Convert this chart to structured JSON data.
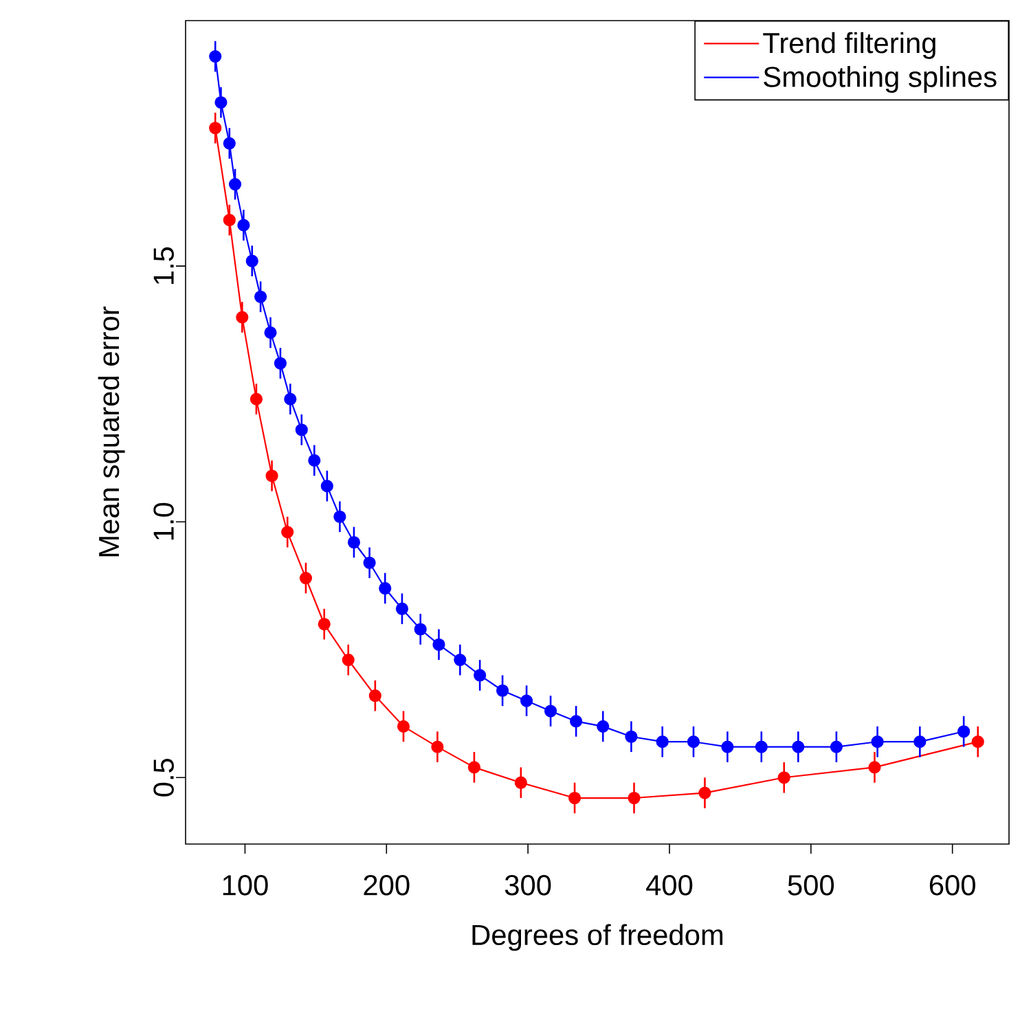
{
  "chart_data": {
    "type": "line",
    "xlabel": "Degrees of freedom",
    "ylabel": "Mean squared error",
    "xlim": [
      58,
      640
    ],
    "ylim": [
      0.37,
      1.98
    ],
    "xticks": [
      100,
      200,
      300,
      400,
      500,
      600
    ],
    "yticks": [
      0.5,
      {
        "value": 1,
        "label": "1.0"
      },
      1.5
    ],
    "marker": "circle",
    "line_style": "solid",
    "legend": "top right",
    "series": [
      {
        "name": "Trend filtering",
        "color": "#ff0000",
        "x": [
          79,
          89,
          98,
          108,
          119,
          130,
          143,
          156,
          173,
          192,
          212,
          236,
          262,
          295,
          333,
          375,
          425,
          481,
          545,
          618
        ],
        "values": [
          1.77,
          1.59,
          1.4,
          1.24,
          1.09,
          0.98,
          0.89,
          0.8,
          0.73,
          0.66,
          0.6,
          0.56,
          0.52,
          0.49,
          0.46,
          0.46,
          0.47,
          0.5,
          0.52,
          0.57
        ],
        "errors": [
          0.03,
          0.03,
          0.03,
          0.03,
          0.03,
          0.03,
          0.03,
          0.03,
          0.03,
          0.03,
          0.03,
          0.03,
          0.03,
          0.03,
          0.03,
          0.03,
          0.03,
          0.03,
          0.03,
          0.03
        ]
      },
      {
        "name": "Smoothing splines",
        "color": "#0000ff",
        "x": [
          79,
          83,
          89,
          93,
          99,
          105,
          111,
          118,
          125,
          132,
          140,
          149,
          158,
          167,
          177,
          188,
          199,
          211,
          224,
          237,
          252,
          266,
          282,
          299,
          316,
          334,
          353,
          373,
          395,
          417,
          441,
          465,
          491,
          518,
          547,
          577,
          608
        ],
        "values": [
          1.91,
          1.82,
          1.74,
          1.66,
          1.58,
          1.51,
          1.44,
          1.37,
          1.31,
          1.24,
          1.18,
          1.12,
          1.07,
          1.01,
          0.96,
          0.92,
          0.87,
          0.83,
          0.79,
          0.76,
          0.73,
          0.7,
          0.67,
          0.65,
          0.63,
          0.61,
          0.6,
          0.58,
          0.57,
          0.57,
          0.56,
          0.56,
          0.56,
          0.56,
          0.57,
          0.57,
          0.59
        ],
        "errors": [
          0.03,
          0.03,
          0.03,
          0.03,
          0.03,
          0.03,
          0.03,
          0.03,
          0.03,
          0.03,
          0.03,
          0.03,
          0.03,
          0.03,
          0.03,
          0.03,
          0.03,
          0.03,
          0.03,
          0.03,
          0.03,
          0.03,
          0.03,
          0.03,
          0.03,
          0.03,
          0.03,
          0.03,
          0.03,
          0.03,
          0.03,
          0.03,
          0.03,
          0.03,
          0.03,
          0.03,
          0.03
        ]
      }
    ]
  }
}
